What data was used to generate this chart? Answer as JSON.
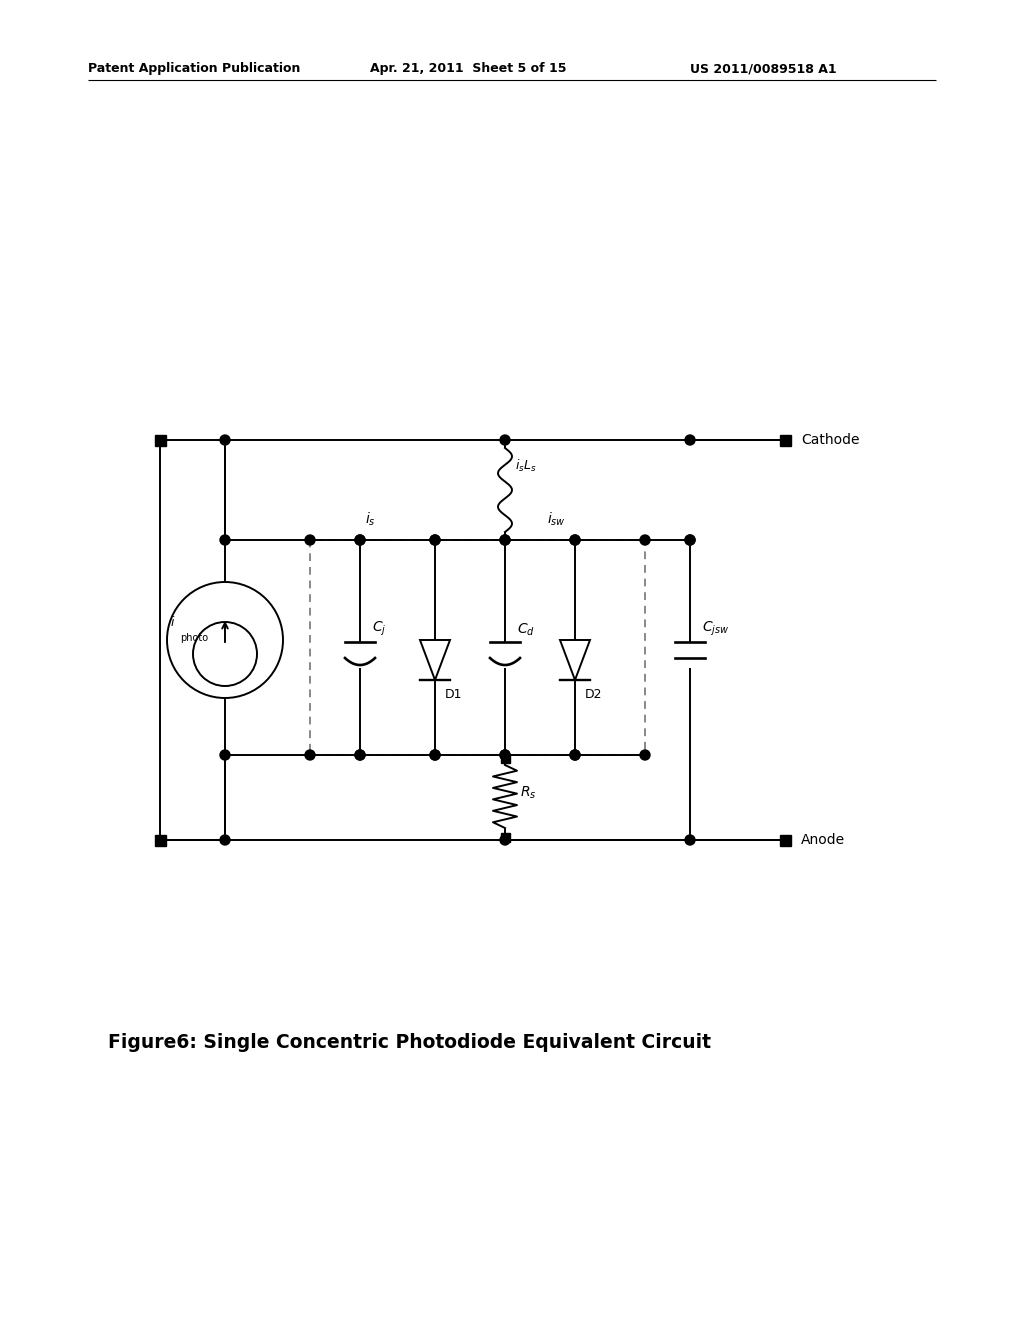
{
  "header_left": "Patent Application Publication",
  "header_mid": "Apr. 21, 2011  Sheet 5 of 15",
  "header_right": "US 2011/0089518 A1",
  "caption": "Figure6: Single Concentric Photodiode Equivalent Circuit",
  "bg": "#ffffff",
  "lc": "#000000",
  "cathode": "Cathode",
  "anode": "Anode",
  "label_D1": "D1",
  "label_D2": "D2",
  "label_is": "$i_s$",
  "label_isw": "$i_{sw}$",
  "label_isLs": "$i_sL_s$",
  "label_Rs": "$R_s$",
  "label_Cj": "$C_j$",
  "label_Cd": "$C_d$",
  "label_Cjsw": "$C_{jsw}$",
  "label_iphoto_i": "$i$",
  "label_iphoto_sub": "photo"
}
